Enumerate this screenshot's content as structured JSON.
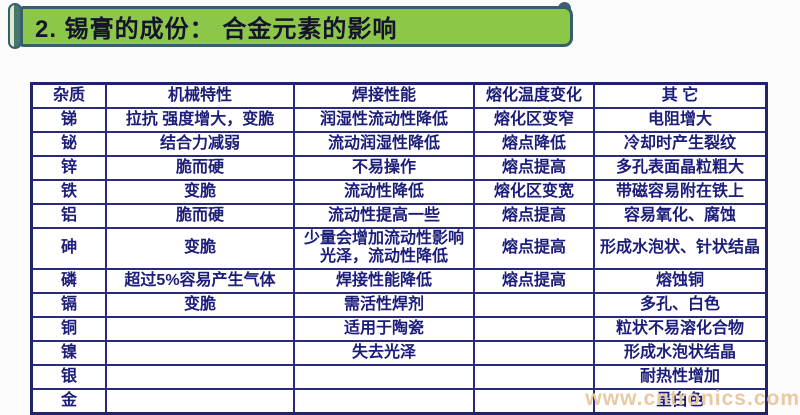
{
  "header": {
    "title": "2. 锡膏的成份： 合金元素的影响"
  },
  "table": {
    "columns": [
      "杂质",
      "机械特性",
      "焊接性能",
      "熔化温度变化",
      "其 它"
    ],
    "rows": [
      [
        "锑",
        "拉抗 强度增大，变脆",
        "润湿性流动性降低",
        "熔化区变窄",
        "电阻增大"
      ],
      [
        "铋",
        "结合力减弱",
        "流动润湿性降低",
        "熔点降低",
        "冷却时产生裂纹"
      ],
      [
        "锌",
        "脆而硬",
        "不易操作",
        "熔点提高",
        "多孔表面晶粒粗大"
      ],
      [
        "铁",
        "变脆",
        "流动性降低",
        "熔化区变宽",
        "带磁容易附在铁上"
      ],
      [
        "铝",
        "脆而硬",
        "流动性提高一些",
        "熔点提高",
        "容易氧化、腐蚀"
      ],
      [
        "砷",
        "变脆",
        "少量会增加流动性影响光泽，流动性降低",
        "熔点提高",
        "形成水泡状、针状结晶"
      ],
      [
        "磷",
        "超过5%容易产生气体",
        "焊接性能降低",
        "熔点提高",
        "熔蚀铜"
      ],
      [
        "镉",
        "变脆",
        "需活性焊剂",
        "",
        "多孔、白色"
      ],
      [
        "铜",
        "",
        "适用于陶瓷",
        "",
        "粒状不易溶化合物"
      ],
      [
        "镍",
        "",
        "失去光泽",
        "",
        "形成水泡状结晶"
      ],
      [
        "银",
        "",
        "",
        "",
        "耐热性增加"
      ],
      [
        "金",
        "",
        "",
        "",
        "呈白色"
      ]
    ]
  },
  "watermark": "www.cntronics.com",
  "colors": {
    "banner_green": "#8dc74a",
    "banner_border": "#35606a",
    "grid_line": "#2b2b7e",
    "table_text": "#1c1c7a",
    "title_text": "#14142a",
    "watermark": "#e8c9a2"
  }
}
